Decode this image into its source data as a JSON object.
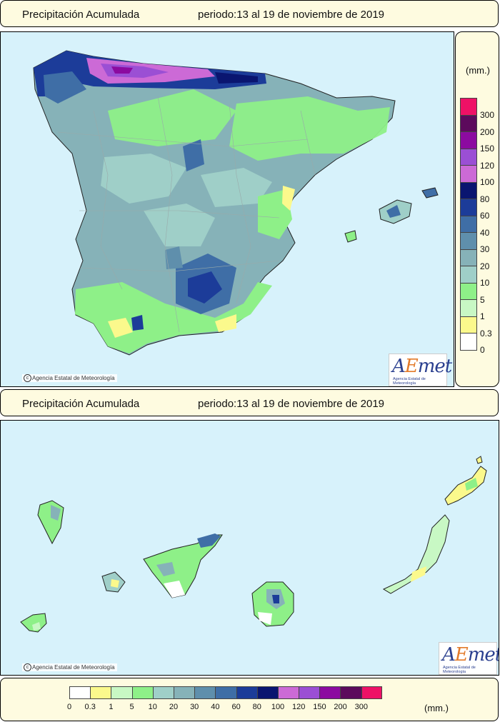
{
  "header_top": {
    "title": "Precipitación Acumulada",
    "period": "periodo:13 al 19 de noviembre de 2019"
  },
  "header_bottom": {
    "title": "Precipitación Acumulada",
    "period": "periodo:13 al 19 de noviembre de 2019"
  },
  "copyright": "Agencia Estatal de Meteorología",
  "logo": {
    "wordmark_a": "A",
    "wordmark_e": "E",
    "wordmark_rest": "met",
    "subtitle": "Agencia Estatal de Meteorología"
  },
  "legend": {
    "unit": "(mm.)",
    "classes": [
      {
        "label": "0",
        "color": "#ffffff"
      },
      {
        "label": "0.3",
        "color": "#fbf98c"
      },
      {
        "label": "1",
        "color": "#c8f8c4"
      },
      {
        "label": "5",
        "color": "#8ef088"
      },
      {
        "label": "10",
        "color": "#9fcfc8"
      },
      {
        "label": "20",
        "color": "#86b2b8"
      },
      {
        "label": "30",
        "color": "#5f8fac"
      },
      {
        "label": "40",
        "color": "#3f6ea6"
      },
      {
        "label": "60",
        "color": "#1c3c99"
      },
      {
        "label": "80",
        "color": "#0a1570"
      },
      {
        "label": "100",
        "color": "#cc6ad6"
      },
      {
        "label": "120",
        "color": "#9b4fd4"
      },
      {
        "label": "150",
        "color": "#8c0aa0"
      },
      {
        "label": "200",
        "color": "#5c0a5c"
      },
      {
        "label": "300",
        "color": "#ee1166"
      }
    ]
  },
  "colors": {
    "sea": "#d7f2fb",
    "panel_bg": "#fefbe0",
    "border": "#000000"
  }
}
